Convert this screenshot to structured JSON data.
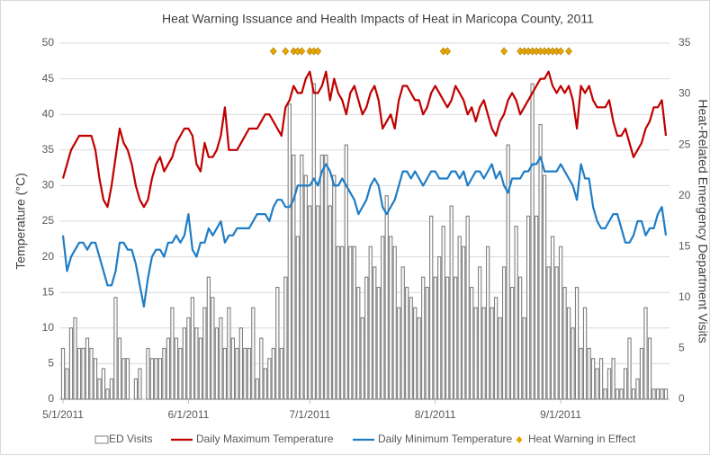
{
  "chart_data": {
    "type": "combo",
    "title": "Heat Warning Issuance and Health Impacts of Heat in Maricopa County, 2011",
    "y_label": "Temperature (°C)",
    "y2_label": "Heat-Related Emergency Department Visits",
    "ylim": [
      0,
      50
    ],
    "yticks": [
      0,
      5,
      10,
      15,
      20,
      25,
      30,
      35,
      40,
      45,
      50
    ],
    "y2lim": [
      0,
      35
    ],
    "y2ticks": [
      0,
      5,
      10,
      15,
      20,
      25,
      30,
      35
    ],
    "grid": true,
    "x": [
      "5/1/2011",
      "5/2/2011",
      "5/3/2011",
      "5/4/2011",
      "5/5/2011",
      "5/6/2011",
      "5/7/2011",
      "5/8/2011",
      "5/9/2011",
      "5/10/2011",
      "5/11/2011",
      "5/12/2011",
      "5/13/2011",
      "5/14/2011",
      "5/15/2011",
      "5/16/2011",
      "5/17/2011",
      "5/18/2011",
      "5/19/2011",
      "5/20/2011",
      "5/21/2011",
      "5/22/2011",
      "5/23/2011",
      "5/24/2011",
      "5/25/2011",
      "5/26/2011",
      "5/27/2011",
      "5/28/2011",
      "5/29/2011",
      "5/30/2011",
      "5/31/2011",
      "6/1/2011",
      "6/2/2011",
      "6/3/2011",
      "6/4/2011",
      "6/5/2011",
      "6/6/2011",
      "6/7/2011",
      "6/8/2011",
      "6/9/2011",
      "6/10/2011",
      "6/11/2011",
      "6/12/2011",
      "6/13/2011",
      "6/14/2011",
      "6/15/2011",
      "6/16/2011",
      "6/17/2011",
      "6/18/2011",
      "6/19/2011",
      "6/20/2011",
      "6/21/2011",
      "6/22/2011",
      "6/23/2011",
      "6/24/2011",
      "6/25/2011",
      "6/26/2011",
      "6/27/2011",
      "6/28/2011",
      "6/29/2011",
      "6/30/2011",
      "7/1/2011",
      "7/2/2011",
      "7/3/2011",
      "7/4/2011",
      "7/5/2011",
      "7/6/2011",
      "7/7/2011",
      "7/8/2011",
      "7/9/2011",
      "7/10/2011",
      "7/11/2011",
      "7/12/2011",
      "7/13/2011",
      "7/14/2011",
      "7/15/2011",
      "7/16/2011",
      "7/17/2011",
      "7/18/2011",
      "7/19/2011",
      "7/20/2011",
      "7/21/2011",
      "7/22/2011",
      "7/23/2011",
      "7/24/2011",
      "7/25/2011",
      "7/26/2011",
      "7/27/2011",
      "7/28/2011",
      "7/29/2011",
      "7/30/2011",
      "7/31/2011",
      "8/1/2011",
      "8/2/2011",
      "8/3/2011",
      "8/4/2011",
      "8/5/2011",
      "8/6/2011",
      "8/7/2011",
      "8/8/2011",
      "8/9/2011",
      "8/10/2011",
      "8/11/2011",
      "8/12/2011",
      "8/13/2011",
      "8/14/2011",
      "8/15/2011",
      "8/16/2011",
      "8/17/2011",
      "8/18/2011",
      "8/19/2011",
      "8/20/2011",
      "8/21/2011",
      "8/22/2011",
      "8/23/2011",
      "8/24/2011",
      "8/25/2011",
      "8/26/2011",
      "8/27/2011",
      "8/28/2011",
      "8/29/2011",
      "8/30/2011",
      "8/31/2011",
      "9/1/2011",
      "9/2/2011",
      "9/3/2011",
      "9/4/2011",
      "9/5/2011",
      "9/6/2011",
      "9/7/2011",
      "9/8/2011",
      "9/9/2011",
      "9/10/2011",
      "9/11/2011",
      "9/12/2011",
      "9/13/2011",
      "9/14/2011",
      "9/15/2011",
      "9/16/2011",
      "9/17/2011",
      "9/18/2011",
      "9/19/2011",
      "9/20/2011",
      "9/21/2011",
      "9/22/2011",
      "9/23/2011",
      "9/24/2011",
      "9/25/2011",
      "9/26/2011",
      "9/27/2011"
    ],
    "x_tick_indices_shown": [
      0,
      31,
      61,
      92,
      123
    ],
    "series": [
      {
        "name": "ED Visits",
        "type": "bar",
        "axis": "y2",
        "color": "#7f7f7f",
        "values": [
          5,
          3,
          7,
          8,
          5,
          5,
          6,
          5,
          4,
          2,
          3,
          1,
          2,
          10,
          6,
          4,
          4,
          0,
          2,
          3,
          0,
          5,
          4,
          4,
          4,
          5,
          6,
          9,
          6,
          5,
          7,
          8,
          10,
          7,
          6,
          9,
          12,
          10,
          7,
          8,
          5,
          9,
          6,
          5,
          7,
          5,
          5,
          9,
          2,
          6,
          3,
          4,
          5,
          11,
          5,
          12,
          29,
          24,
          16,
          24,
          22,
          19,
          31,
          19,
          24,
          24,
          19,
          22,
          15,
          15,
          25,
          15,
          15,
          11,
          8,
          12,
          15,
          13,
          11,
          16,
          20,
          16,
          15,
          9,
          13,
          11,
          10,
          9,
          8,
          12,
          11,
          18,
          12,
          14,
          17,
          12,
          19,
          12,
          16,
          15,
          18,
          11,
          9,
          13,
          9,
          15,
          9,
          10,
          8,
          13,
          25,
          11,
          17,
          12,
          8,
          18,
          31,
          18,
          27,
          22,
          13,
          16,
          13,
          15,
          11,
          9,
          7,
          11,
          5,
          9,
          5,
          4,
          3,
          4,
          1,
          3,
          4,
          1,
          1,
          3,
          6,
          1,
          2,
          5,
          9,
          6,
          1,
          1,
          1,
          1
        ]
      },
      {
        "name": "Daily Maximum Temperature",
        "type": "line",
        "color": "#c00000",
        "values": [
          31,
          33,
          35,
          36,
          37,
          37,
          37,
          37,
          35,
          31,
          28,
          27,
          30,
          34,
          38,
          36,
          35,
          33,
          30,
          28,
          27,
          28,
          31,
          33,
          34,
          32,
          33,
          34,
          36,
          37,
          38,
          38,
          37,
          33,
          32,
          36,
          34,
          34,
          35,
          37,
          41,
          35,
          35,
          35,
          36,
          37,
          38,
          38,
          38,
          39,
          40,
          40,
          39,
          38,
          37,
          41,
          42,
          44,
          43,
          43,
          45,
          46,
          43,
          43,
          44,
          46,
          42,
          45,
          43,
          42,
          40,
          43,
          44,
          42,
          40,
          41,
          43,
          44,
          42,
          38,
          39,
          40,
          38,
          42,
          44,
          44,
          43,
          42,
          42,
          40,
          41,
          43,
          44,
          43,
          42,
          41,
          42,
          44,
          43,
          42,
          40,
          41,
          39,
          41,
          42,
          40,
          38,
          37,
          39,
          40,
          42,
          43,
          42,
          40,
          41,
          42,
          43,
          44,
          45,
          45,
          46,
          44,
          43,
          44,
          43,
          44,
          42,
          38,
          44,
          43,
          44,
          42,
          41,
          41,
          41,
          42,
          39,
          37,
          37,
          38,
          36,
          34,
          35,
          36,
          38,
          39,
          41,
          41,
          42,
          37
        ]
      },
      {
        "name": "Daily Minimum Temperature",
        "type": "line",
        "color": "#1f7dc6",
        "values": [
          23,
          18,
          20,
          21,
          22,
          22,
          21,
          22,
          22,
          20,
          18,
          16,
          16,
          18,
          22,
          22,
          21,
          21,
          19,
          16,
          13,
          17,
          20,
          21,
          21,
          20,
          22,
          22,
          23,
          22,
          23,
          26,
          21,
          20,
          22,
          22,
          24,
          23,
          24,
          25,
          22,
          23,
          23,
          24,
          24,
          24,
          24,
          25,
          26,
          26,
          26,
          25,
          27,
          28,
          28,
          27,
          27,
          28,
          30,
          30,
          30,
          30,
          31,
          30,
          32,
          33,
          32,
          30,
          30,
          31,
          30,
          29,
          28,
          26,
          27,
          28,
          30,
          31,
          30,
          27,
          26,
          27,
          28,
          30,
          32,
          32,
          31,
          32,
          31,
          30,
          31,
          32,
          32,
          31,
          31,
          31,
          32,
          32,
          31,
          32,
          30,
          31,
          32,
          32,
          31,
          32,
          33,
          31,
          32,
          30,
          29,
          31,
          31,
          31,
          32,
          32,
          33,
          33,
          34,
          32,
          32,
          32,
          32,
          33,
          32,
          31,
          30,
          28,
          33,
          31,
          31,
          27,
          25,
          24,
          24,
          25,
          26,
          26,
          24,
          22,
          22,
          23,
          25,
          25,
          23,
          24,
          24,
          26,
          27,
          23
        ]
      },
      {
        "name": "Heat Warning in Effect",
        "type": "scatter",
        "color": "#e6a800",
        "values": [
          null,
          null,
          null,
          null,
          null,
          null,
          null,
          null,
          null,
          null,
          null,
          null,
          null,
          null,
          null,
          null,
          null,
          null,
          null,
          null,
          null,
          null,
          null,
          null,
          null,
          null,
          null,
          null,
          null,
          null,
          null,
          null,
          null,
          null,
          null,
          null,
          null,
          null,
          null,
          null,
          null,
          null,
          null,
          null,
          null,
          null,
          null,
          null,
          null,
          null,
          null,
          null,
          50,
          null,
          null,
          50,
          null,
          50,
          50,
          50,
          null,
          50,
          50,
          50,
          null,
          null,
          null,
          null,
          null,
          null,
          null,
          null,
          null,
          null,
          null,
          null,
          null,
          null,
          null,
          null,
          null,
          null,
          null,
          null,
          null,
          null,
          null,
          null,
          null,
          null,
          null,
          null,
          null,
          null,
          50,
          50,
          null,
          null,
          null,
          null,
          null,
          null,
          null,
          null,
          null,
          null,
          null,
          null,
          null,
          50,
          null,
          null,
          null,
          50,
          50,
          50,
          50,
          50,
          50,
          50,
          50,
          50,
          50,
          50,
          null,
          50,
          null,
          null,
          null,
          null,
          null,
          null,
          null,
          null,
          null,
          null,
          null,
          null,
          null,
          null,
          null,
          null,
          null,
          null,
          null,
          null,
          null,
          null,
          null,
          null
        ]
      }
    ]
  }
}
